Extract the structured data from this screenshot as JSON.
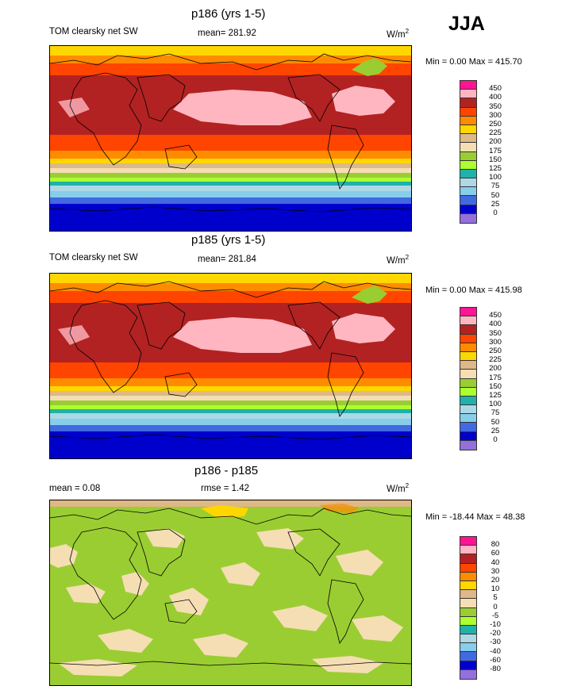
{
  "season": "JJA",
  "panels": [
    {
      "title": "p186 (yrs 1-5)",
      "left_label": "TOM clearsky net SW",
      "center_label": "mean= 281.92",
      "units": "W/m",
      "units_sup": "2",
      "minmax": "Min =   0.00 Max = 415.70",
      "levels": [
        "450",
        "400",
        "350",
        "300",
        "250",
        "225",
        "200",
        "175",
        "150",
        "125",
        "100",
        "75",
        "50",
        "25",
        "0"
      ],
      "colors": [
        "#ff1493",
        "#ffb6c1",
        "#b22222",
        "#ff4500",
        "#ff8c00",
        "#ffd700",
        "#deb887",
        "#f5deb3",
        "#9acd32",
        "#adff2f",
        "#20b2aa",
        "#add8e6",
        "#87ceeb",
        "#4169e1",
        "#0000cd",
        "#9370db"
      ]
    },
    {
      "title": "p185 (yrs 1-5)",
      "left_label": "TOM clearsky net SW",
      "center_label": "mean= 281.84",
      "units": "W/m",
      "units_sup": "2",
      "minmax": "Min =   0.00 Max = 415.98",
      "levels": [
        "450",
        "400",
        "350",
        "300",
        "250",
        "225",
        "200",
        "175",
        "150",
        "125",
        "100",
        "75",
        "50",
        "25",
        "0"
      ],
      "colors": [
        "#ff1493",
        "#ffb6c1",
        "#b22222",
        "#ff4500",
        "#ff8c00",
        "#ffd700",
        "#deb887",
        "#f5deb3",
        "#9acd32",
        "#adff2f",
        "#20b2aa",
        "#add8e6",
        "#87ceeb",
        "#4169e1",
        "#0000cd",
        "#9370db"
      ]
    },
    {
      "title": "p186 - p185",
      "left_label": "mean =   0.08",
      "center_label": "rmse =   1.42",
      "units": "W/m",
      "units_sup": "2",
      "minmax": "Min = -18.44 Max =  48.38",
      "levels": [
        "80",
        "60",
        "40",
        "30",
        "20",
        "10",
        "5",
        "0",
        "-5",
        "-10",
        "-20",
        "-30",
        "-40",
        "-60",
        "-80"
      ],
      "colors": [
        "#ff1493",
        "#ffb6c1",
        "#b22222",
        "#ff4500",
        "#ff8c00",
        "#ffd700",
        "#deb887",
        "#f5deb3",
        "#9acd32",
        "#adff2f",
        "#20b2aa",
        "#add8e6",
        "#87ceeb",
        "#4169e1",
        "#0000cd",
        "#9370db"
      ]
    }
  ]
}
